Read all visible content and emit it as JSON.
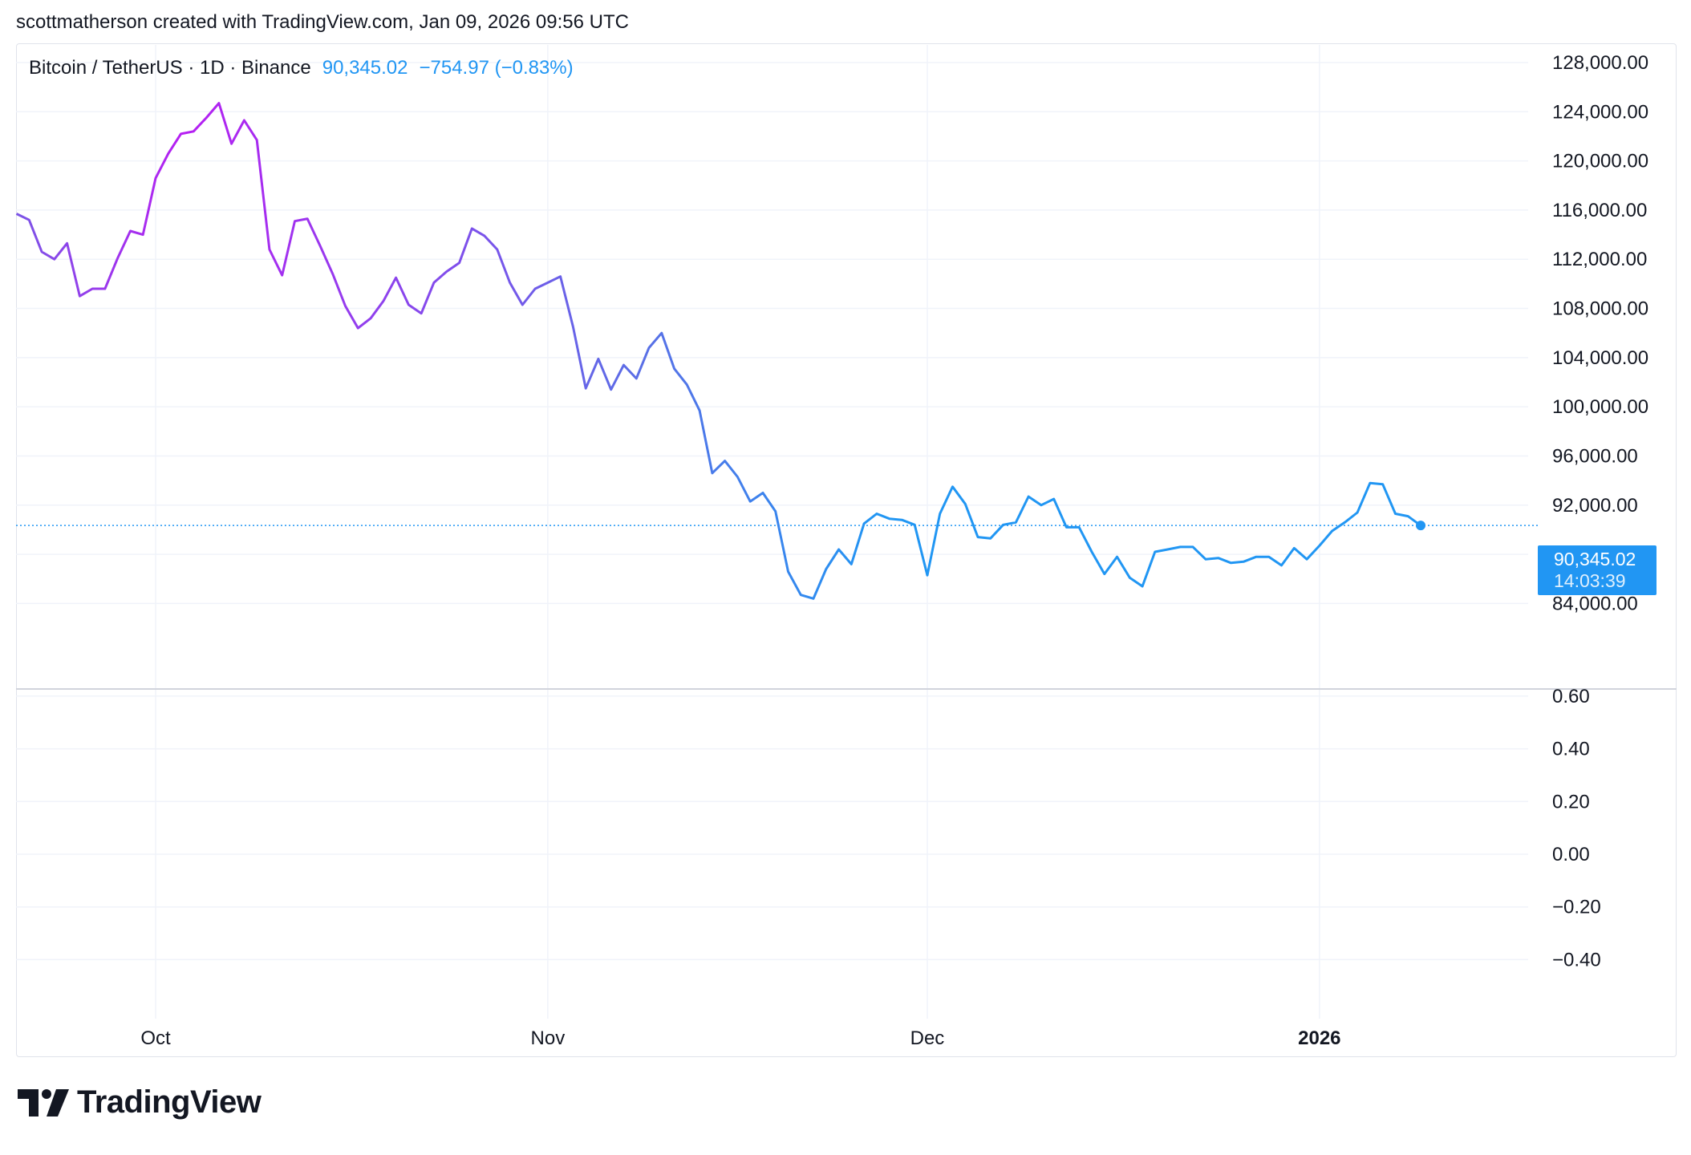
{
  "credit": "scottmatherson created with TradingView.com, Jan 09, 2026 09:56 UTC",
  "legend": {
    "symbol": "Bitcoin / TetherUS · 1D · Binance",
    "last": "90,345.02",
    "change": "−754.97 (−0.83%)"
  },
  "price_tag": {
    "price": "90,345.02",
    "countdown": "14:03:39"
  },
  "brand": {
    "name": "TradingView",
    "icon": "tradingview-logo-icon"
  },
  "colors": {
    "line_start": "#b61ff2",
    "line_mid": "#7b55e6",
    "line_end": "#2196f3",
    "tag": "#2196f3",
    "grid": "#f0f3fa"
  },
  "chart_data": {
    "type": "line",
    "title": "Bitcoin / TetherUS · 1D · Binance",
    "x_labels": [
      "Oct",
      "Nov",
      "Dec",
      "2026"
    ],
    "y_ticks_price": [
      "128,000.00",
      "124,000.00",
      "120,000.00",
      "116,000.00",
      "112,000.00",
      "108,000.00",
      "104,000.00",
      "100,000.00",
      "96,000.00",
      "92,000.00",
      "84,000.00"
    ],
    "y_ticks_indicator": [
      "0.60",
      "0.40",
      "0.20",
      "0.00",
      "−0.20",
      "−0.40"
    ],
    "ylim": [
      80700,
      128000
    ],
    "grid": true,
    "series": [
      {
        "dates": [
          "2025-09-20",
          "2025-09-21",
          "2025-09-22",
          "2025-09-23",
          "2025-09-24",
          "2025-09-25",
          "2025-09-26",
          "2025-09-27",
          "2025-09-28",
          "2025-09-29",
          "2025-09-30",
          "2025-10-01",
          "2025-10-02",
          "2025-10-03",
          "2025-10-04",
          "2025-10-05",
          "2025-10-06",
          "2025-10-07",
          "2025-10-08",
          "2025-10-09",
          "2025-10-10",
          "2025-10-11",
          "2025-10-12",
          "2025-10-13",
          "2025-10-14",
          "2025-10-15",
          "2025-10-16",
          "2025-10-17",
          "2025-10-18",
          "2025-10-19",
          "2025-10-20",
          "2025-10-21",
          "2025-10-22",
          "2025-10-23",
          "2025-10-24",
          "2025-10-25",
          "2025-10-26",
          "2025-10-27",
          "2025-10-28",
          "2025-10-29",
          "2025-10-30",
          "2025-10-31",
          "2025-11-01",
          "2025-11-02",
          "2025-11-03",
          "2025-11-04",
          "2025-11-05",
          "2025-11-06",
          "2025-11-07",
          "2025-11-08",
          "2025-11-09",
          "2025-11-10",
          "2025-11-11",
          "2025-11-12",
          "2025-11-13",
          "2025-11-14",
          "2025-11-15",
          "2025-11-16",
          "2025-11-17",
          "2025-11-18",
          "2025-11-19",
          "2025-11-20",
          "2025-11-21",
          "2025-11-22",
          "2025-11-23",
          "2025-11-24",
          "2025-11-25",
          "2025-11-26",
          "2025-11-27",
          "2025-11-28",
          "2025-11-29",
          "2025-11-30",
          "2025-12-01",
          "2025-12-02",
          "2025-12-03",
          "2025-12-04",
          "2025-12-05",
          "2025-12-06",
          "2025-12-07",
          "2025-12-08",
          "2025-12-09",
          "2025-12-10",
          "2025-12-11",
          "2025-12-12",
          "2025-12-13",
          "2025-12-14",
          "2025-12-15",
          "2025-12-16",
          "2025-12-17",
          "2025-12-18",
          "2025-12-19",
          "2025-12-20",
          "2025-12-21",
          "2025-12-22",
          "2025-12-23",
          "2025-12-24",
          "2025-12-25",
          "2025-12-26",
          "2025-12-27",
          "2025-12-28",
          "2025-12-29",
          "2025-12-30",
          "2025-12-31",
          "2026-01-01",
          "2026-01-02",
          "2026-01-03",
          "2026-01-04",
          "2026-01-05",
          "2026-01-06",
          "2026-01-07",
          "2026-01-08",
          "2026-01-09"
        ],
        "values": [
          115700,
          115200,
          112600,
          112000,
          113300,
          109000,
          109600,
          109600,
          112100,
          114300,
          114000,
          118600,
          120600,
          122200,
          122400,
          123500,
          124700,
          121400,
          123300,
          121700,
          112800,
          110700,
          115100,
          115300,
          113100,
          110800,
          108200,
          106400,
          107200,
          108600,
          110500,
          108300,
          107600,
          110100,
          111000,
          111700,
          114500,
          113900,
          112800,
          110100,
          108300,
          109600,
          110100,
          110600,
          106500,
          101500,
          103900,
          101400,
          103400,
          102300,
          104800,
          106000,
          103100,
          101800,
          99700,
          94600,
          95600,
          94300,
          92300,
          93000,
          91500,
          86600,
          84700,
          84400,
          86800,
          88400,
          87200,
          90500,
          91300,
          90900,
          90800,
          90400,
          86300,
          91300,
          93500,
          92100,
          89400,
          89300,
          90400,
          90600,
          92700,
          92000,
          92500,
          90200,
          90200,
          88200,
          86400,
          87800,
          86100,
          85400,
          88200,
          88400,
          88600,
          88600,
          87600,
          87700,
          87300,
          87400,
          87800,
          87800,
          87100,
          88500,
          87600,
          88700,
          89900,
          90600,
          91400,
          93800,
          93700,
          91300,
          91100,
          90345
        ]
      }
    ]
  }
}
